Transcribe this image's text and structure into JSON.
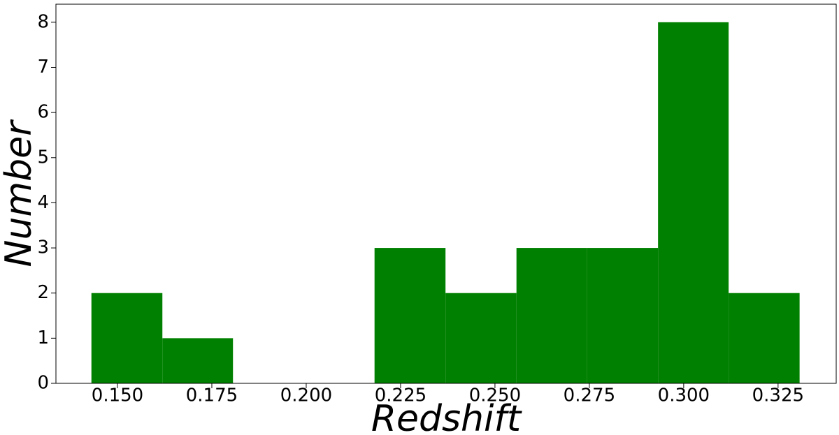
{
  "chart_data": {
    "type": "histogram",
    "x_label": "Redshift",
    "y_label": "Number",
    "bins": [
      0.1431,
      0.1619,
      0.1806,
      0.1994,
      0.2181,
      0.2369,
      0.2557,
      0.2744,
      0.2932,
      0.3119,
      0.3307
    ],
    "values": [
      2,
      1,
      0,
      0,
      3,
      2,
      3,
      3,
      8,
      2
    ],
    "color": "#008000",
    "xlim": [
      0.1337,
      0.3404
    ],
    "xticks": [
      {
        "value": 0.15,
        "label": "0.150"
      },
      {
        "value": 0.175,
        "label": "0.175"
      },
      {
        "value": 0.2,
        "label": "0.200"
      },
      {
        "value": 0.225,
        "label": "0.225"
      },
      {
        "value": 0.25,
        "label": "0.250"
      },
      {
        "value": 0.275,
        "label": "0.275"
      },
      {
        "value": 0.3,
        "label": "0.300"
      },
      {
        "value": 0.325,
        "label": "0.325"
      }
    ],
    "ylim": [
      0,
      8.4
    ],
    "yticks": [
      0,
      1,
      2,
      3,
      4,
      5,
      6,
      7,
      8
    ]
  }
}
